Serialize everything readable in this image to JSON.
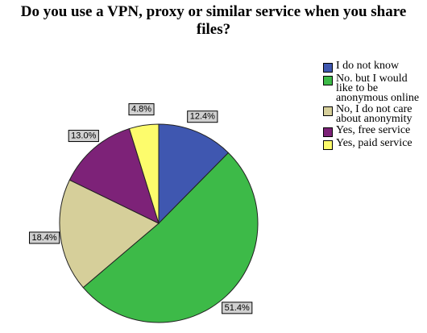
{
  "chart_data": {
    "type": "pie",
    "title": "Do you use a VPN, proxy or similar service when you share files?",
    "categories": [
      "I do not know",
      "No. but I would like to be anonymous online",
      "No, I do not care about anonymity",
      "Yes, free service",
      "Yes, paid service"
    ],
    "values": [
      12.4,
      51.4,
      18.4,
      13.0,
      4.8
    ],
    "value_labels": [
      "12.4%",
      "51.4%",
      "18.4%",
      "13.0%",
      "4.8%"
    ],
    "colors": [
      "#3f57b0",
      "#3dba48",
      "#d6cf9a",
      "#7d2278",
      "#fdfc6c"
    ],
    "legend": "right"
  }
}
